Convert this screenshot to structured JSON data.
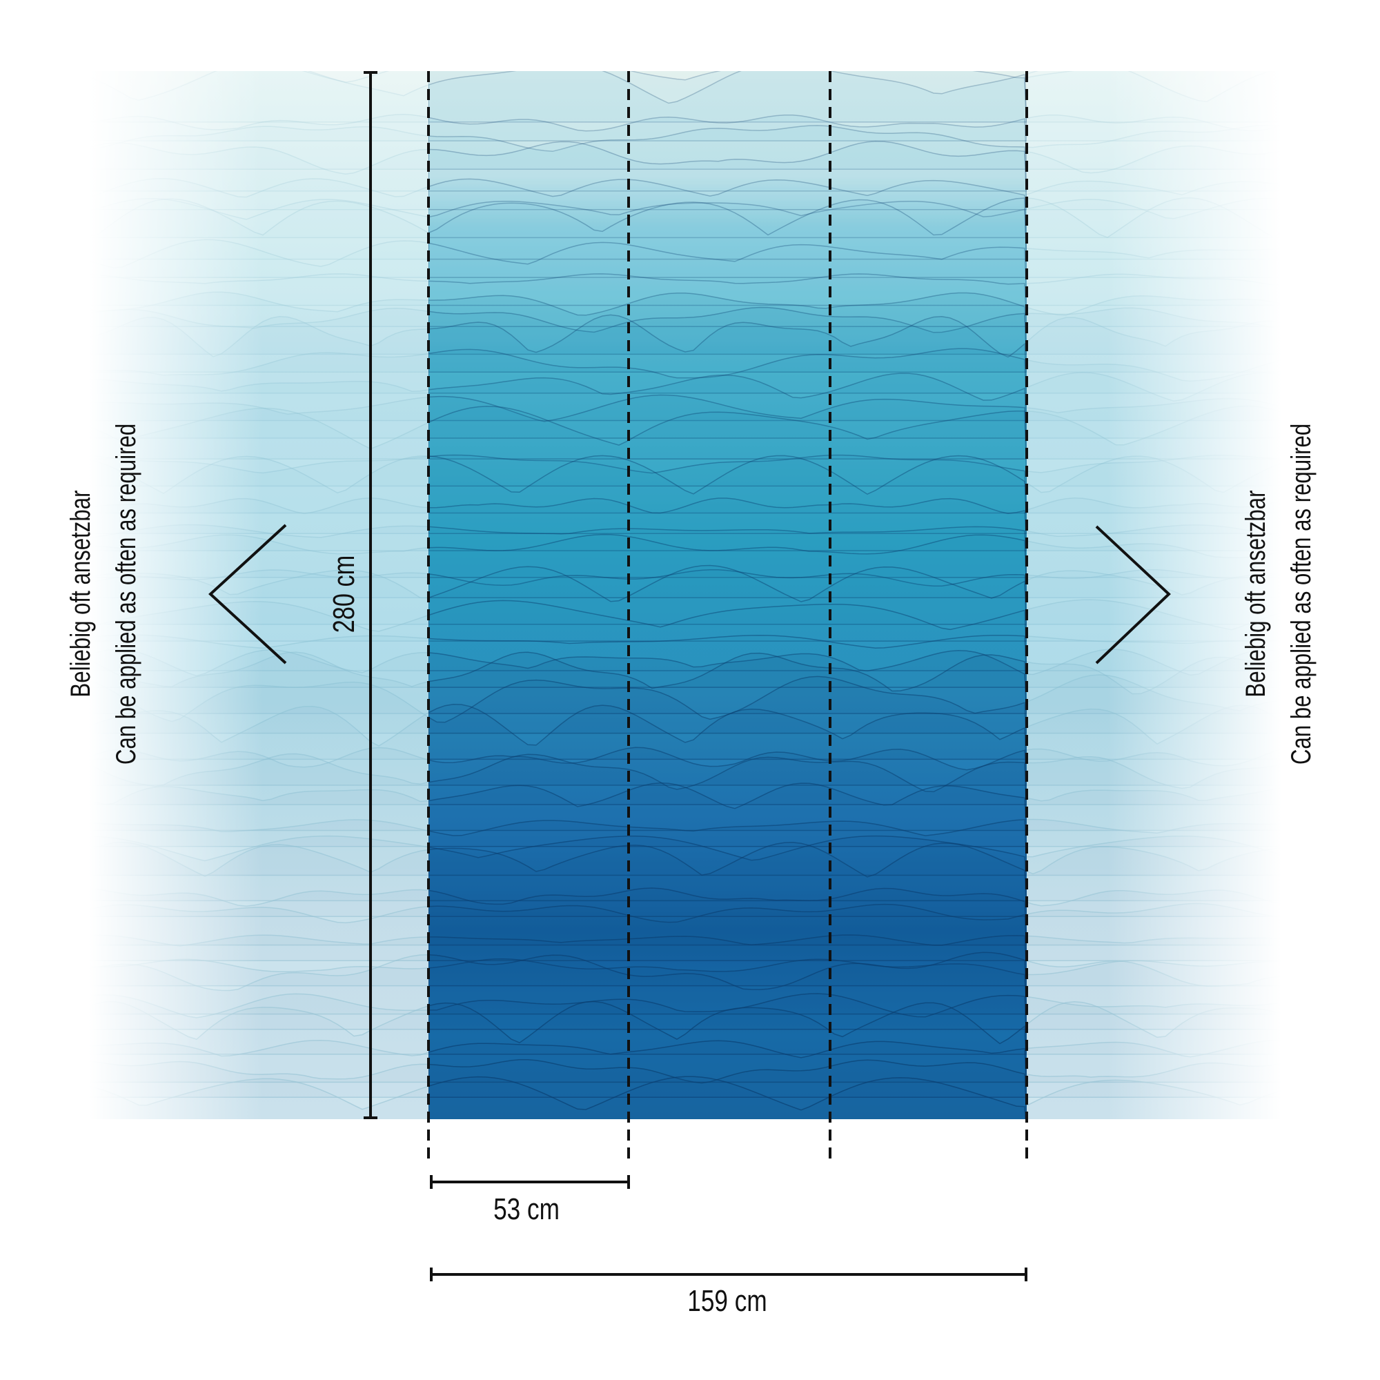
{
  "mural": {
    "panel_count": 3,
    "height_label": "280 cm",
    "panel_width_label": "53 cm",
    "total_width_label": "159 cm",
    "left_note": {
      "line1": "Beliebig oft ansetzbar",
      "line2": "Can be applied as often as required"
    },
    "right_note": {
      "line1": "Beliebig oft ansetzbar",
      "line2": "Can be applied as often as required"
    },
    "icons": [
      "chevron-left-icon",
      "chevron-right-icon"
    ],
    "colors": {
      "top": "#e3f1ee",
      "mid": "#2fa3c6",
      "deep": "#0f5f9e",
      "lines": "#111111"
    }
  }
}
